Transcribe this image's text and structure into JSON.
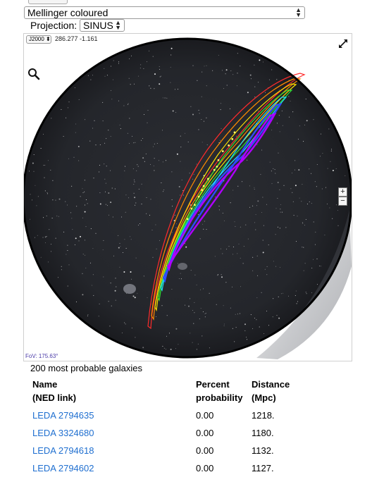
{
  "survey_select": {
    "value": "Mellinger coloured"
  },
  "projection": {
    "label": "Projection:",
    "value": "SINUS"
  },
  "viewer": {
    "frame": "J2000",
    "coordinates": "286.277 -1.161",
    "fov": "FoV: 175.63°",
    "zoom_in": "+",
    "zoom_out": "−"
  },
  "galaxies": {
    "count_text": "200 most probable galaxies",
    "headers": {
      "name_line1": "Name",
      "name_line2": "(NED link)",
      "pct_line1": "Percent",
      "pct_line2": "probability",
      "dist_line1": "Distance",
      "dist_line2": "(Mpc)"
    },
    "rows": [
      {
        "name": "LEDA 2794635",
        "percent": "0.00",
        "distance": "1218."
      },
      {
        "name": "LEDA 3324680",
        "percent": "0.00",
        "distance": "1180."
      },
      {
        "name": "LEDA 2794618",
        "percent": "0.00",
        "distance": "1132."
      },
      {
        "name": "LEDA 2794602",
        "percent": "0.00",
        "distance": "1127."
      }
    ]
  },
  "colors": {
    "link": "#1f6fd0",
    "fov_text": "#4a3aa8"
  }
}
